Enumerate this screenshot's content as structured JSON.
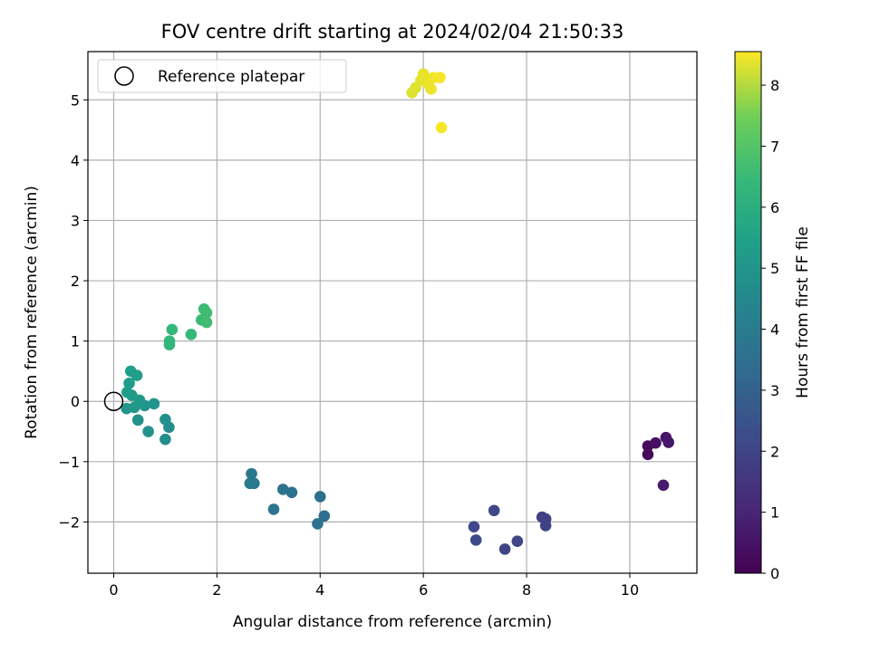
{
  "chart_data": {
    "type": "scatter",
    "title": "FOV centre drift starting at 2024/02/04 21:50:33",
    "xlabel": "Angular distance from reference (arcmin)",
    "ylabel": "Rotation from reference (arcmin)",
    "xlim": [
      -0.5,
      11.3
    ],
    "ylim": [
      -2.85,
      5.8
    ],
    "xticks": [
      0,
      2,
      4,
      6,
      8,
      10
    ],
    "yticks": [
      -2,
      -1,
      0,
      1,
      2,
      3,
      4,
      5
    ],
    "grid": true,
    "legend": {
      "placement": "upper-left",
      "entries": [
        "Reference platepar"
      ]
    },
    "reference_point": {
      "x": 0,
      "y": 0
    },
    "colorbar": {
      "label": "Hours from first FF file",
      "range": [
        0,
        8.55
      ],
      "ticks": [
        0,
        1,
        2,
        3,
        4,
        5,
        6,
        7,
        8
      ],
      "colormap": "viridis"
    },
    "points": [
      {
        "x": 10.35,
        "y": -0.74,
        "c": 0.2
      },
      {
        "x": 10.35,
        "y": -0.88,
        "c": 0.3
      },
      {
        "x": 10.5,
        "y": -0.69,
        "c": 0.4
      },
      {
        "x": 10.7,
        "y": -0.6,
        "c": 0.55
      },
      {
        "x": 10.75,
        "y": -0.68,
        "c": 0.6
      },
      {
        "x": 10.65,
        "y": -1.39,
        "c": 0.75
      },
      {
        "x": 8.3,
        "y": -1.92,
        "c": 1.8
      },
      {
        "x": 8.37,
        "y": -1.95,
        "c": 1.85
      },
      {
        "x": 8.37,
        "y": -2.06,
        "c": 1.9
      },
      {
        "x": 7.82,
        "y": -2.32,
        "c": 2.0
      },
      {
        "x": 7.58,
        "y": -2.45,
        "c": 2.05
      },
      {
        "x": 7.37,
        "y": -1.81,
        "c": 2.1
      },
      {
        "x": 6.98,
        "y": -2.08,
        "c": 2.15
      },
      {
        "x": 7.02,
        "y": -2.3,
        "c": 2.2
      },
      {
        "x": 4.08,
        "y": -1.9,
        "c": 3.5
      },
      {
        "x": 4.0,
        "y": -1.58,
        "c": 3.55
      },
      {
        "x": 3.95,
        "y": -2.03,
        "c": 3.6
      },
      {
        "x": 3.45,
        "y": -1.51,
        "c": 3.65
      },
      {
        "x": 3.28,
        "y": -1.46,
        "c": 3.7
      },
      {
        "x": 3.1,
        "y": -1.79,
        "c": 3.75
      },
      {
        "x": 2.67,
        "y": -1.2,
        "c": 3.85
      },
      {
        "x": 2.64,
        "y": -1.36,
        "c": 3.9
      },
      {
        "x": 2.72,
        "y": -1.36,
        "c": 3.95
      },
      {
        "x": 1.0,
        "y": -0.63,
        "c": 4.7
      },
      {
        "x": 1.07,
        "y": -0.43,
        "c": 4.75
      },
      {
        "x": 1.0,
        "y": -0.3,
        "c": 4.8
      },
      {
        "x": 0.67,
        "y": -0.5,
        "c": 4.85
      },
      {
        "x": 0.47,
        "y": -0.31,
        "c": 4.9
      },
      {
        "x": 0.6,
        "y": -0.07,
        "c": 4.95
      },
      {
        "x": 0.78,
        "y": -0.04,
        "c": 5.0
      },
      {
        "x": 0.25,
        "y": -0.12,
        "c": 5.05
      },
      {
        "x": 0.4,
        "y": -0.1,
        "c": 5.1
      },
      {
        "x": 0.5,
        "y": 0.02,
        "c": 5.15
      },
      {
        "x": 0.35,
        "y": 0.1,
        "c": 5.2
      },
      {
        "x": 0.26,
        "y": 0.15,
        "c": 5.25
      },
      {
        "x": 0.3,
        "y": 0.3,
        "c": 5.3
      },
      {
        "x": 0.33,
        "y": 0.5,
        "c": 5.35
      },
      {
        "x": 0.45,
        "y": 0.43,
        "c": 5.4
      },
      {
        "x": 1.08,
        "y": 0.94,
        "c": 6.3
      },
      {
        "x": 1.08,
        "y": 1.0,
        "c": 6.35
      },
      {
        "x": 1.13,
        "y": 1.19,
        "c": 6.4
      },
      {
        "x": 1.5,
        "y": 1.11,
        "c": 6.45
      },
      {
        "x": 1.7,
        "y": 1.35,
        "c": 6.5
      },
      {
        "x": 1.75,
        "y": 1.53,
        "c": 6.55
      },
      {
        "x": 1.8,
        "y": 1.47,
        "c": 6.6
      },
      {
        "x": 1.8,
        "y": 1.31,
        "c": 6.65
      },
      {
        "x": 5.78,
        "y": 5.12,
        "c": 8.3
      },
      {
        "x": 5.85,
        "y": 5.2,
        "c": 8.32
      },
      {
        "x": 5.95,
        "y": 5.32,
        "c": 8.35
      },
      {
        "x": 6.0,
        "y": 5.43,
        "c": 8.38
      },
      {
        "x": 6.02,
        "y": 5.38,
        "c": 8.4
      },
      {
        "x": 6.1,
        "y": 5.26,
        "c": 8.42
      },
      {
        "x": 6.15,
        "y": 5.18,
        "c": 8.44
      },
      {
        "x": 6.2,
        "y": 5.37,
        "c": 8.46
      },
      {
        "x": 6.32,
        "y": 5.37,
        "c": 8.48
      },
      {
        "x": 6.35,
        "y": 4.54,
        "c": 8.5
      }
    ]
  }
}
